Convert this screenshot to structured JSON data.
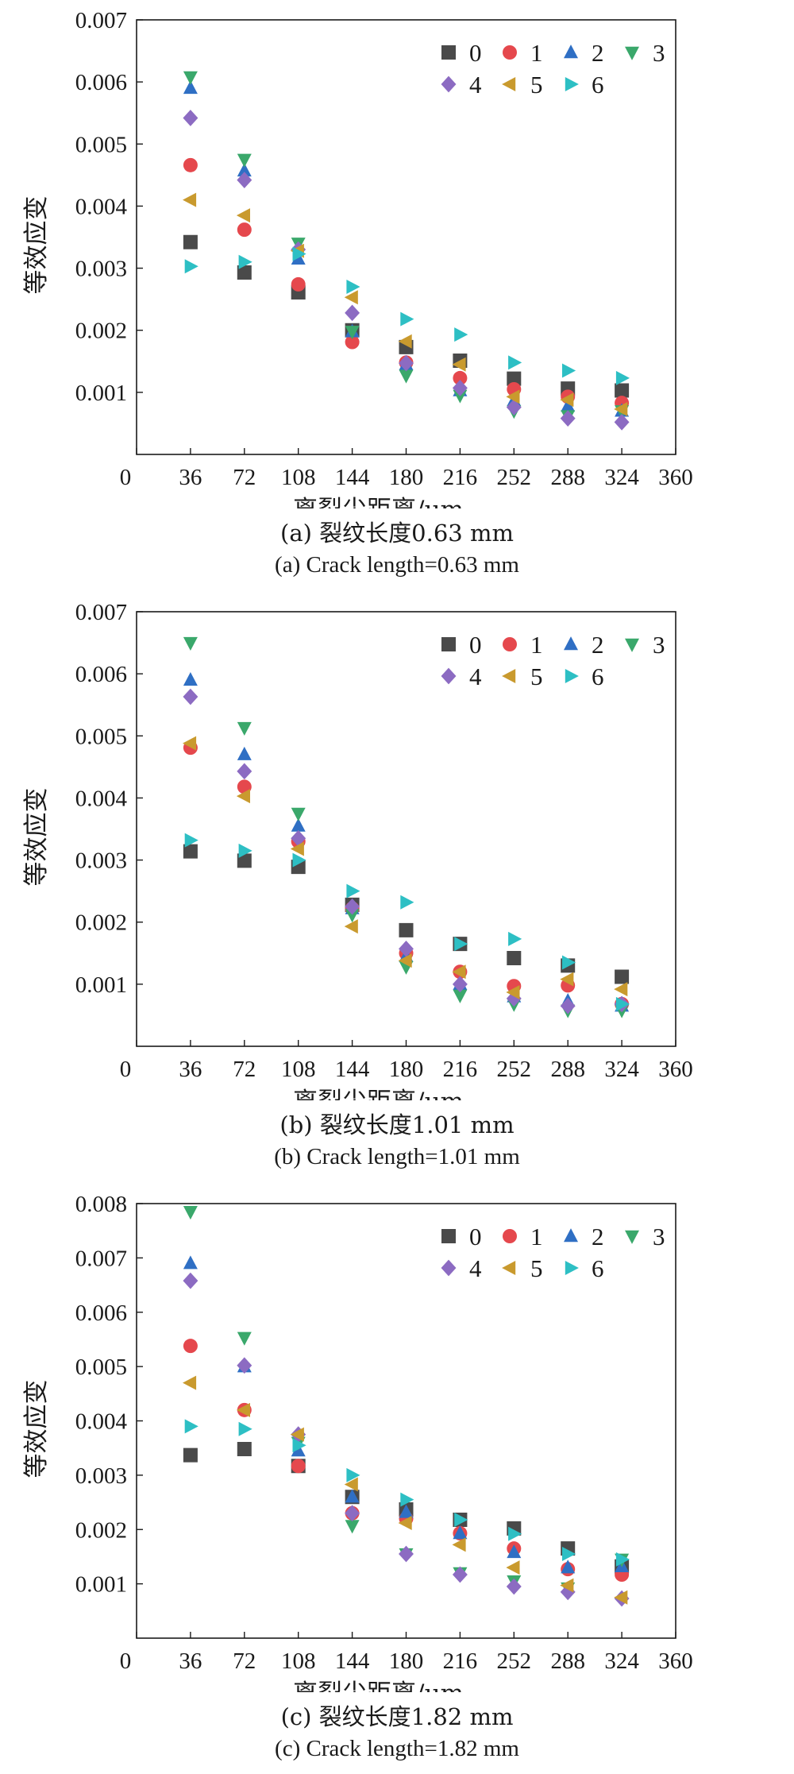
{
  "series_styles": [
    {
      "name": "0",
      "marker": "square",
      "color": "#4a4a4a"
    },
    {
      "name": "1",
      "marker": "circle",
      "color": "#e5484d"
    },
    {
      "name": "2",
      "marker": "triangle-up",
      "color": "#2f6fc4"
    },
    {
      "name": "3",
      "marker": "triangle-down",
      "color": "#3aa86b"
    },
    {
      "name": "4",
      "marker": "diamond",
      "color": "#8c6bc2"
    },
    {
      "name": "5",
      "marker": "triangle-left",
      "color": "#c99a2e"
    },
    {
      "name": "6",
      "marker": "triangle-right",
      "color": "#2dbfc4"
    }
  ],
  "chart_data": [
    {
      "type": "scatter",
      "caption_cn": "(a) 裂纹长度0.63 mm",
      "caption_en": "(a) Crack length=0.63 mm",
      "xlabel": "离裂尖距离/μm",
      "ylabel": "等效应变",
      "xlim": [
        0,
        360
      ],
      "ylim": [
        0,
        0.007
      ],
      "xticks": [
        "0",
        "36",
        "72",
        "108",
        "144",
        "180",
        "216",
        "252",
        "288",
        "324",
        "360"
      ],
      "yticks": [
        "0.001",
        "0.002",
        "0.003",
        "0.004",
        "0.005",
        "0.006",
        "0.007"
      ],
      "legend_position": "top-right",
      "x": [
        36,
        72,
        108,
        144,
        180,
        216,
        252,
        288,
        324
      ],
      "series": [
        {
          "name": "0",
          "values": [
            0.00342,
            0.00293,
            0.00261,
            0.002,
            0.00173,
            0.00151,
            0.00122,
            0.00106,
            0.00103
          ]
        },
        {
          "name": "1",
          "values": [
            0.00466,
            0.00362,
            0.00274,
            0.00181,
            0.00148,
            0.00123,
            0.00105,
            0.00093,
            0.00083
          ]
        },
        {
          "name": "2",
          "values": [
            0.0059,
            0.00457,
            0.00315,
            0.00198,
            0.00145,
            0.00103,
            0.00087,
            0.00078,
            0.0007
          ]
        },
        {
          "name": "3",
          "values": [
            0.00608,
            0.00475,
            0.0034,
            0.00198,
            0.00127,
            0.00095,
            0.0007,
            0.00062,
            0.0007
          ]
        },
        {
          "name": "4",
          "values": [
            0.00542,
            0.00442,
            0.0033,
            0.00228,
            0.00147,
            0.00107,
            0.00076,
            0.00058,
            0.00052
          ]
        },
        {
          "name": "5",
          "values": [
            0.0041,
            0.00385,
            0.00328,
            0.00253,
            0.00182,
            0.00145,
            0.00093,
            0.00088,
            0.00073
          ]
        },
        {
          "name": "6",
          "values": [
            0.00303,
            0.0031,
            0.00323,
            0.0027,
            0.00218,
            0.00193,
            0.00148,
            0.00135,
            0.00123
          ]
        }
      ]
    },
    {
      "type": "scatter",
      "caption_cn": "(b) 裂纹长度1.01 mm",
      "caption_en": "(b) Crack length=1.01 mm",
      "xlabel": "离裂尖距离/μm",
      "ylabel": "等效应变",
      "xlim": [
        0,
        360
      ],
      "ylim": [
        0,
        0.007
      ],
      "xticks": [
        "0",
        "36",
        "72",
        "108",
        "144",
        "180",
        "216",
        "252",
        "288",
        "324",
        "360"
      ],
      "yticks": [
        "0.001",
        "0.002",
        "0.003",
        "0.004",
        "0.005",
        "0.006",
        "0.007"
      ],
      "legend_position": "top-right",
      "x": [
        36,
        72,
        108,
        144,
        180,
        216,
        252,
        288,
        324
      ],
      "series": [
        {
          "name": "0",
          "values": [
            0.00314,
            0.00299,
            0.00289,
            0.00228,
            0.00187,
            0.00165,
            0.00142,
            0.0013,
            0.00112
          ]
        },
        {
          "name": "1",
          "values": [
            0.00481,
            0.00418,
            0.0033,
            0.00222,
            0.0015,
            0.0012,
            0.00097,
            0.00098,
            0.00068
          ]
        },
        {
          "name": "2",
          "values": [
            0.0059,
            0.0047,
            0.00355,
            0.00222,
            0.00145,
            0.001,
            0.0008,
            0.00073,
            0.00065
          ]
        },
        {
          "name": "3",
          "values": [
            0.0065,
            0.00513,
            0.00375,
            0.00212,
            0.00128,
            0.00082,
            0.00068,
            0.00058,
            0.00058
          ]
        },
        {
          "name": "4",
          "values": [
            0.00563,
            0.00443,
            0.00335,
            0.00225,
            0.00157,
            0.001,
            0.00077,
            0.00065,
            0.00068
          ]
        },
        {
          "name": "5",
          "values": [
            0.00488,
            0.00403,
            0.00318,
            0.00193,
            0.00138,
            0.0012,
            0.00087,
            0.00108,
            0.00092
          ]
        },
        {
          "name": "6",
          "values": [
            0.00332,
            0.00315,
            0.003,
            0.0025,
            0.00232,
            0.00165,
            0.00173,
            0.00135,
            0.00068
          ]
        }
      ]
    },
    {
      "type": "scatter",
      "caption_cn": "(c) 裂纹长度1.82 mm",
      "caption_en": "(c) Crack length=1.82 mm",
      "xlabel": "离裂尖距离/μm",
      "ylabel": "等效应变",
      "xlim": [
        0,
        360
      ],
      "ylim": [
        0,
        0.008
      ],
      "xticks": [
        "0",
        "36",
        "72",
        "108",
        "144",
        "180",
        "216",
        "252",
        "288",
        "324",
        "360"
      ],
      "yticks": [
        "0.001",
        "0.002",
        "0.003",
        "0.004",
        "0.005",
        "0.006",
        "0.007",
        "0.008"
      ],
      "legend_position": "top-right",
      "x": [
        36,
        72,
        108,
        144,
        180,
        216,
        252,
        288,
        324
      ],
      "series": [
        {
          "name": "0",
          "values": [
            0.00337,
            0.00348,
            0.00317,
            0.0026,
            0.00237,
            0.00218,
            0.00202,
            0.00165,
            0.00132
          ]
        },
        {
          "name": "1",
          "values": [
            0.00538,
            0.0042,
            0.00317,
            0.0023,
            0.0022,
            0.00193,
            0.00165,
            0.00127,
            0.00117
          ]
        },
        {
          "name": "2",
          "values": [
            0.0069,
            0.005,
            0.00345,
            0.0026,
            0.00232,
            0.00193,
            0.00158,
            0.0013,
            0.00132
          ]
        },
        {
          "name": "3",
          "values": [
            0.00785,
            0.00553,
            0.0036,
            0.00207,
            0.00155,
            0.0012,
            0.00105,
            0.00092,
            0.00145
          ]
        },
        {
          "name": "4",
          "values": [
            0.00658,
            0.00502,
            0.00375,
            0.0023,
            0.00155,
            0.00117,
            0.00095,
            0.00085,
            0.00073
          ]
        },
        {
          "name": "5",
          "values": [
            0.0047,
            0.0042,
            0.00375,
            0.00283,
            0.00212,
            0.00172,
            0.0013,
            0.00097,
            0.00075
          ]
        },
        {
          "name": "6",
          "values": [
            0.0039,
            0.00385,
            0.00355,
            0.003,
            0.00255,
            0.00218,
            0.00192,
            0.00155,
            0.00145
          ]
        }
      ]
    }
  ]
}
